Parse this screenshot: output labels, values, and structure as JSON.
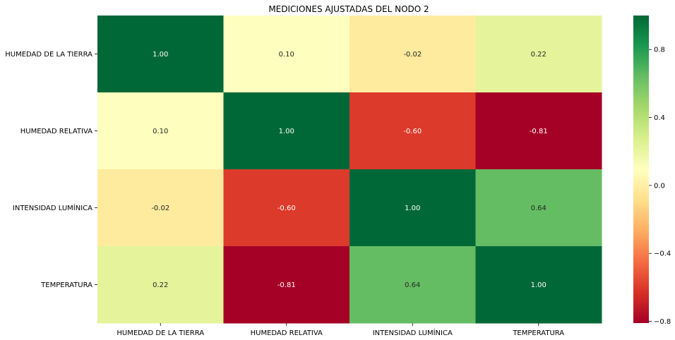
{
  "chart_data": {
    "type": "heatmap",
    "title": "MEDICIONES AJUSTADAS DEL NODO 2",
    "xlabel": "",
    "ylabel": "",
    "rows": [
      "HUMEDAD DE LA TIERRA",
      "HUMEDAD RELATIVA",
      "INTENSIDAD LUMÍNICA",
      "TEMPERATURA"
    ],
    "columns": [
      "HUMEDAD DE LA TIERRA",
      "HUMEDAD RELATIVA",
      "INTENSIDAD LUMÍNICA",
      "TEMPERATURA"
    ],
    "values": [
      [
        1.0,
        0.1,
        -0.02,
        0.22
      ],
      [
        0.1,
        1.0,
        -0.6,
        -0.81
      ],
      [
        -0.02,
        -0.6,
        1.0,
        0.64
      ],
      [
        0.22,
        -0.81,
        0.64,
        1.0
      ]
    ],
    "value_labels": [
      [
        "1.00",
        "0.10",
        "-0.02",
        "0.22"
      ],
      [
        "0.10",
        "1.00",
        "-0.60",
        "-0.81"
      ],
      [
        "-0.02",
        "-0.60",
        "1.00",
        "0.64"
      ],
      [
        "0.22",
        "-0.81",
        "0.64",
        "1.00"
      ]
    ],
    "colormap": "RdYlGn",
    "vmin": -0.81,
    "vmax": 1.0,
    "colorbar": {
      "ticks": [
        0.8,
        0.4,
        0.0,
        -0.4,
        -0.8
      ],
      "tick_labels": [
        "0.8",
        "0.4",
        "0.0",
        "−0.4",
        "−0.8"
      ]
    },
    "grid": false,
    "legend": "colorbar-right"
  }
}
